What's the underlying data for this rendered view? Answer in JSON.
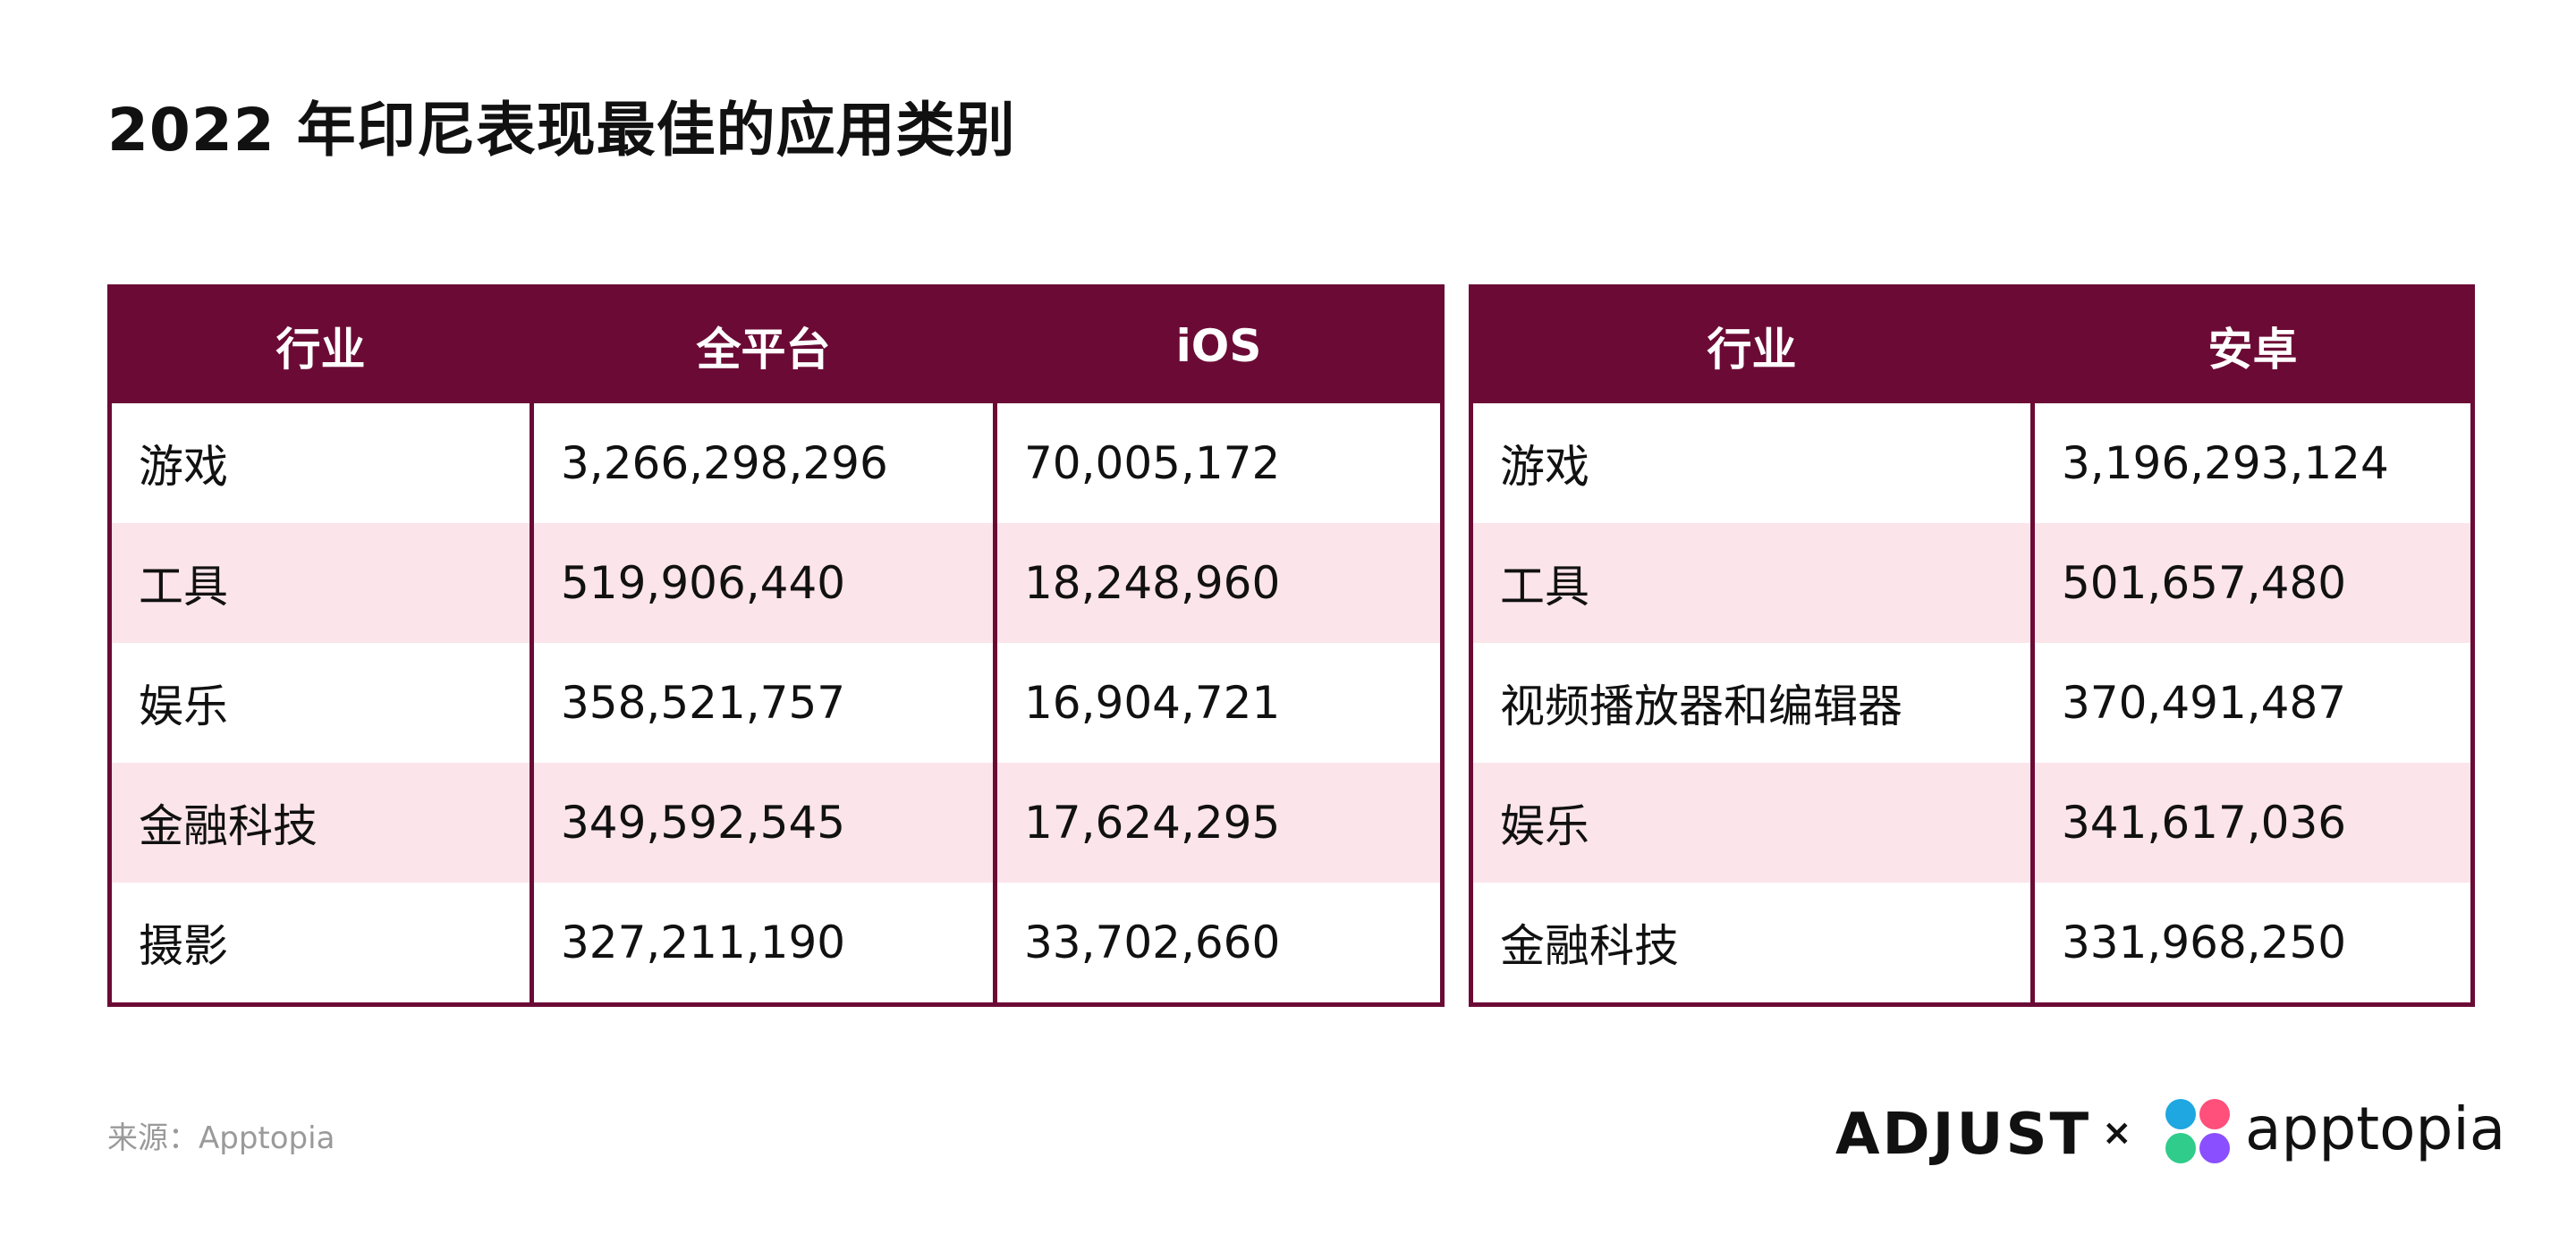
{
  "title": "2022 年印尼表现最佳的应用类别",
  "tables": [
    {
      "headers": [
        "行业",
        "全平台",
        "iOS"
      ],
      "rows": [
        [
          "游戏",
          "3,266,298,296",
          "70,005,172"
        ],
        [
          "工具",
          "519,906,440",
          "18,248,960"
        ],
        [
          "娱乐",
          "358,521,757",
          "16,904,721"
        ],
        [
          "金融科技",
          "349,592,545",
          "17,624,295"
        ],
        [
          "摄影",
          "327,211,190",
          "33,702,660"
        ]
      ]
    },
    {
      "headers": [
        "行业",
        "安卓"
      ],
      "rows": [
        [
          "游戏",
          "3,196,293,124"
        ],
        [
          "工具",
          "501,657,480"
        ],
        [
          "视频播放器和编辑器",
          "370,491,487"
        ],
        [
          "娱乐",
          "341,617,036"
        ],
        [
          "金融科技",
          "331,968,250"
        ]
      ]
    }
  ],
  "source": "来源：Apptopia",
  "logos": {
    "adjust": "ADJUST",
    "separator": "×",
    "apptopia": "apptopia",
    "apptopia_icon": "apptopia-icon"
  },
  "colors": {
    "header_bg": "#6b0b35",
    "stripe_bg": "#fbe4ea",
    "icon_colors": [
      "#1ea7e1",
      "#ff4f7b",
      "#2fcc8b",
      "#8a4fff"
    ]
  },
  "chart_data": [
    {
      "type": "table",
      "columns": [
        "行业",
        "全平台",
        "iOS"
      ],
      "rows": [
        [
          "游戏",
          3266298296,
          70005172
        ],
        [
          "工具",
          519906440,
          18248960
        ],
        [
          "娱乐",
          358521757,
          16904721
        ],
        [
          "金融科技",
          349592545,
          17624295
        ],
        [
          "摄影",
          327211190,
          33702660
        ]
      ]
    },
    {
      "type": "table",
      "columns": [
        "行业",
        "安卓"
      ],
      "rows": [
        [
          "游戏",
          3196293124
        ],
        [
          "工具",
          501657480
        ],
        [
          "视频播放器和编辑器",
          370491487
        ],
        [
          "娱乐",
          341617036
        ],
        [
          "金融科技",
          331968250
        ]
      ]
    }
  ]
}
